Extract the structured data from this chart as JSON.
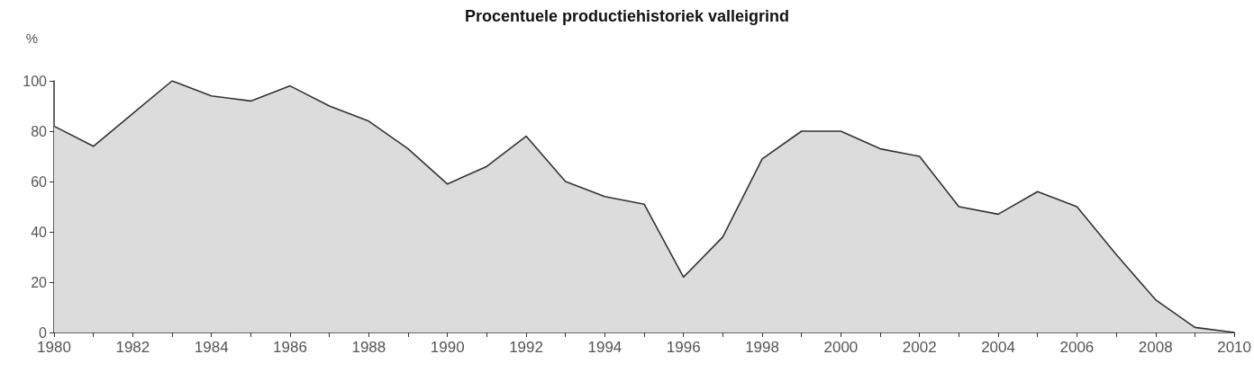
{
  "chart_data": {
    "type": "area",
    "title": "Procentuele productiehistoriek valleigrind",
    "ylabel": "%",
    "x": [
      1980,
      1981,
      1982,
      1983,
      1984,
      1985,
      1986,
      1987,
      1988,
      1989,
      1990,
      1991,
      1992,
      1993,
      1994,
      1995,
      1996,
      1997,
      1998,
      1999,
      2000,
      2001,
      2002,
      2003,
      2004,
      2005,
      2006,
      2007,
      2008,
      2009,
      2010
    ],
    "series": [
      {
        "color": "#333333",
        "values": [
          82,
          74,
          87,
          100,
          94,
          92,
          98,
          90,
          84,
          73,
          59,
          66,
          78,
          60,
          54,
          51,
          22,
          38,
          69,
          80,
          80,
          73,
          70,
          50,
          47,
          56,
          50,
          31,
          13,
          2,
          0
        ]
      }
    ],
    "xlim": [
      1980,
      2010
    ],
    "xticks": [
      1980,
      {
        "value": 1981,
        "label": null
      },
      1982,
      {
        "value": 1983,
        "label": null
      },
      1984,
      {
        "value": 1985,
        "label": null
      },
      1986,
      {
        "value": 1987,
        "label": null
      },
      1988,
      {
        "value": 1989,
        "label": null
      },
      1990,
      {
        "value": 1991,
        "label": null
      },
      1992,
      {
        "value": 1993,
        "label": null
      },
      1994,
      {
        "value": 1995,
        "label": null
      },
      1996,
      {
        "value": 1997,
        "label": null
      },
      1998,
      {
        "value": 1999,
        "label": null
      },
      2000,
      {
        "value": 2001,
        "label": null
      },
      2002,
      {
        "value": 2003,
        "label": null
      },
      2004,
      {
        "value": 2005,
        "label": null
      },
      2006,
      {
        "value": 2007,
        "label": null
      },
      2008,
      {
        "value": 2009,
        "label": null
      },
      2010
    ],
    "ylim": [
      0,
      100
    ],
    "yticks": [
      0,
      20,
      40,
      60,
      80,
      100
    ],
    "grid": false,
    "marker": "none"
  }
}
